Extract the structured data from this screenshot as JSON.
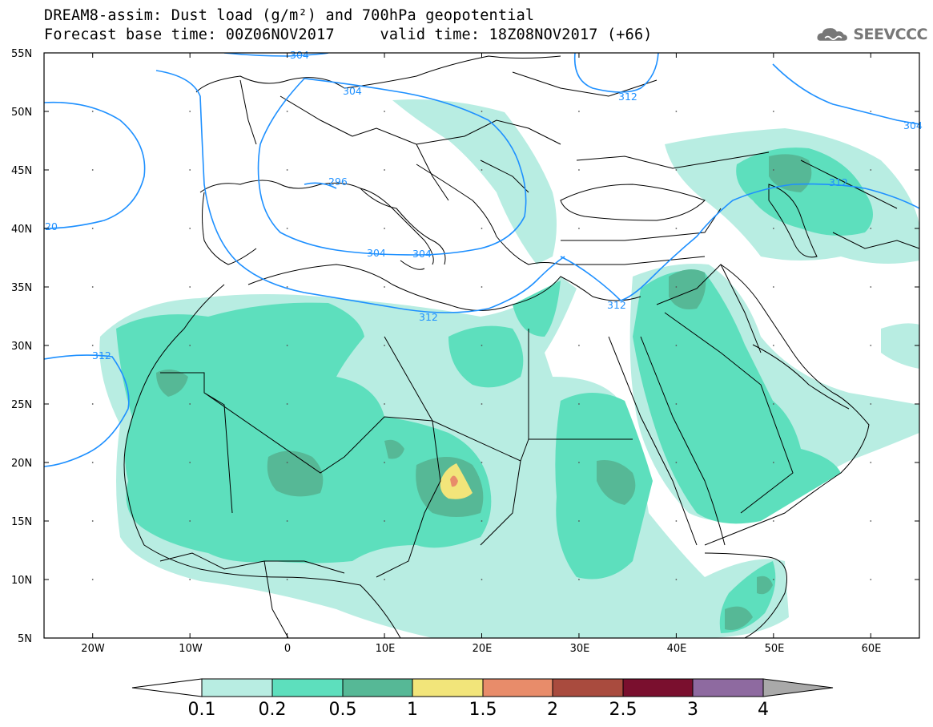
{
  "title": {
    "line1": "DREAM8-assim: Dust load (g/m²) and 700hPa geopotential",
    "line2": "Forecast base time: 00Z06NOV2017     valid time: 18Z08NOV2017 (+66)"
  },
  "logo": {
    "text": "SEEVCCC",
    "icon": "cloud-icon"
  },
  "map": {
    "lon_range": [
      -25,
      65
    ],
    "lat_range": [
      5,
      55
    ],
    "lat_ticks": [
      "55N",
      "50N",
      "45N",
      "40N",
      "35N",
      "30N",
      "25N",
      "20N",
      "15N",
      "10N",
      "5N"
    ],
    "lon_ticks": [
      "20W",
      "10W",
      "0",
      "10E",
      "20E",
      "30E",
      "40E",
      "50E",
      "60E"
    ],
    "contour_labels": [
      "304",
      "304",
      "312",
      "304",
      "296",
      "20",
      "304",
      "304",
      "312",
      "312",
      "312",
      "312",
      "304"
    ],
    "contour_color": "#1e90ff"
  },
  "colorbar": {
    "labels": [
      "0.1",
      "0.2",
      "0.5",
      "1",
      "1.5",
      "2",
      "2.5",
      "3",
      "4"
    ],
    "colors": [
      "#ffffff",
      "#b8ede2",
      "#5ddfbd",
      "#56b896",
      "#f2e57a",
      "#e88c6a",
      "#a94b3e",
      "#7a0f2e",
      "#8e6aa0",
      "#a9a9a9"
    ]
  }
}
